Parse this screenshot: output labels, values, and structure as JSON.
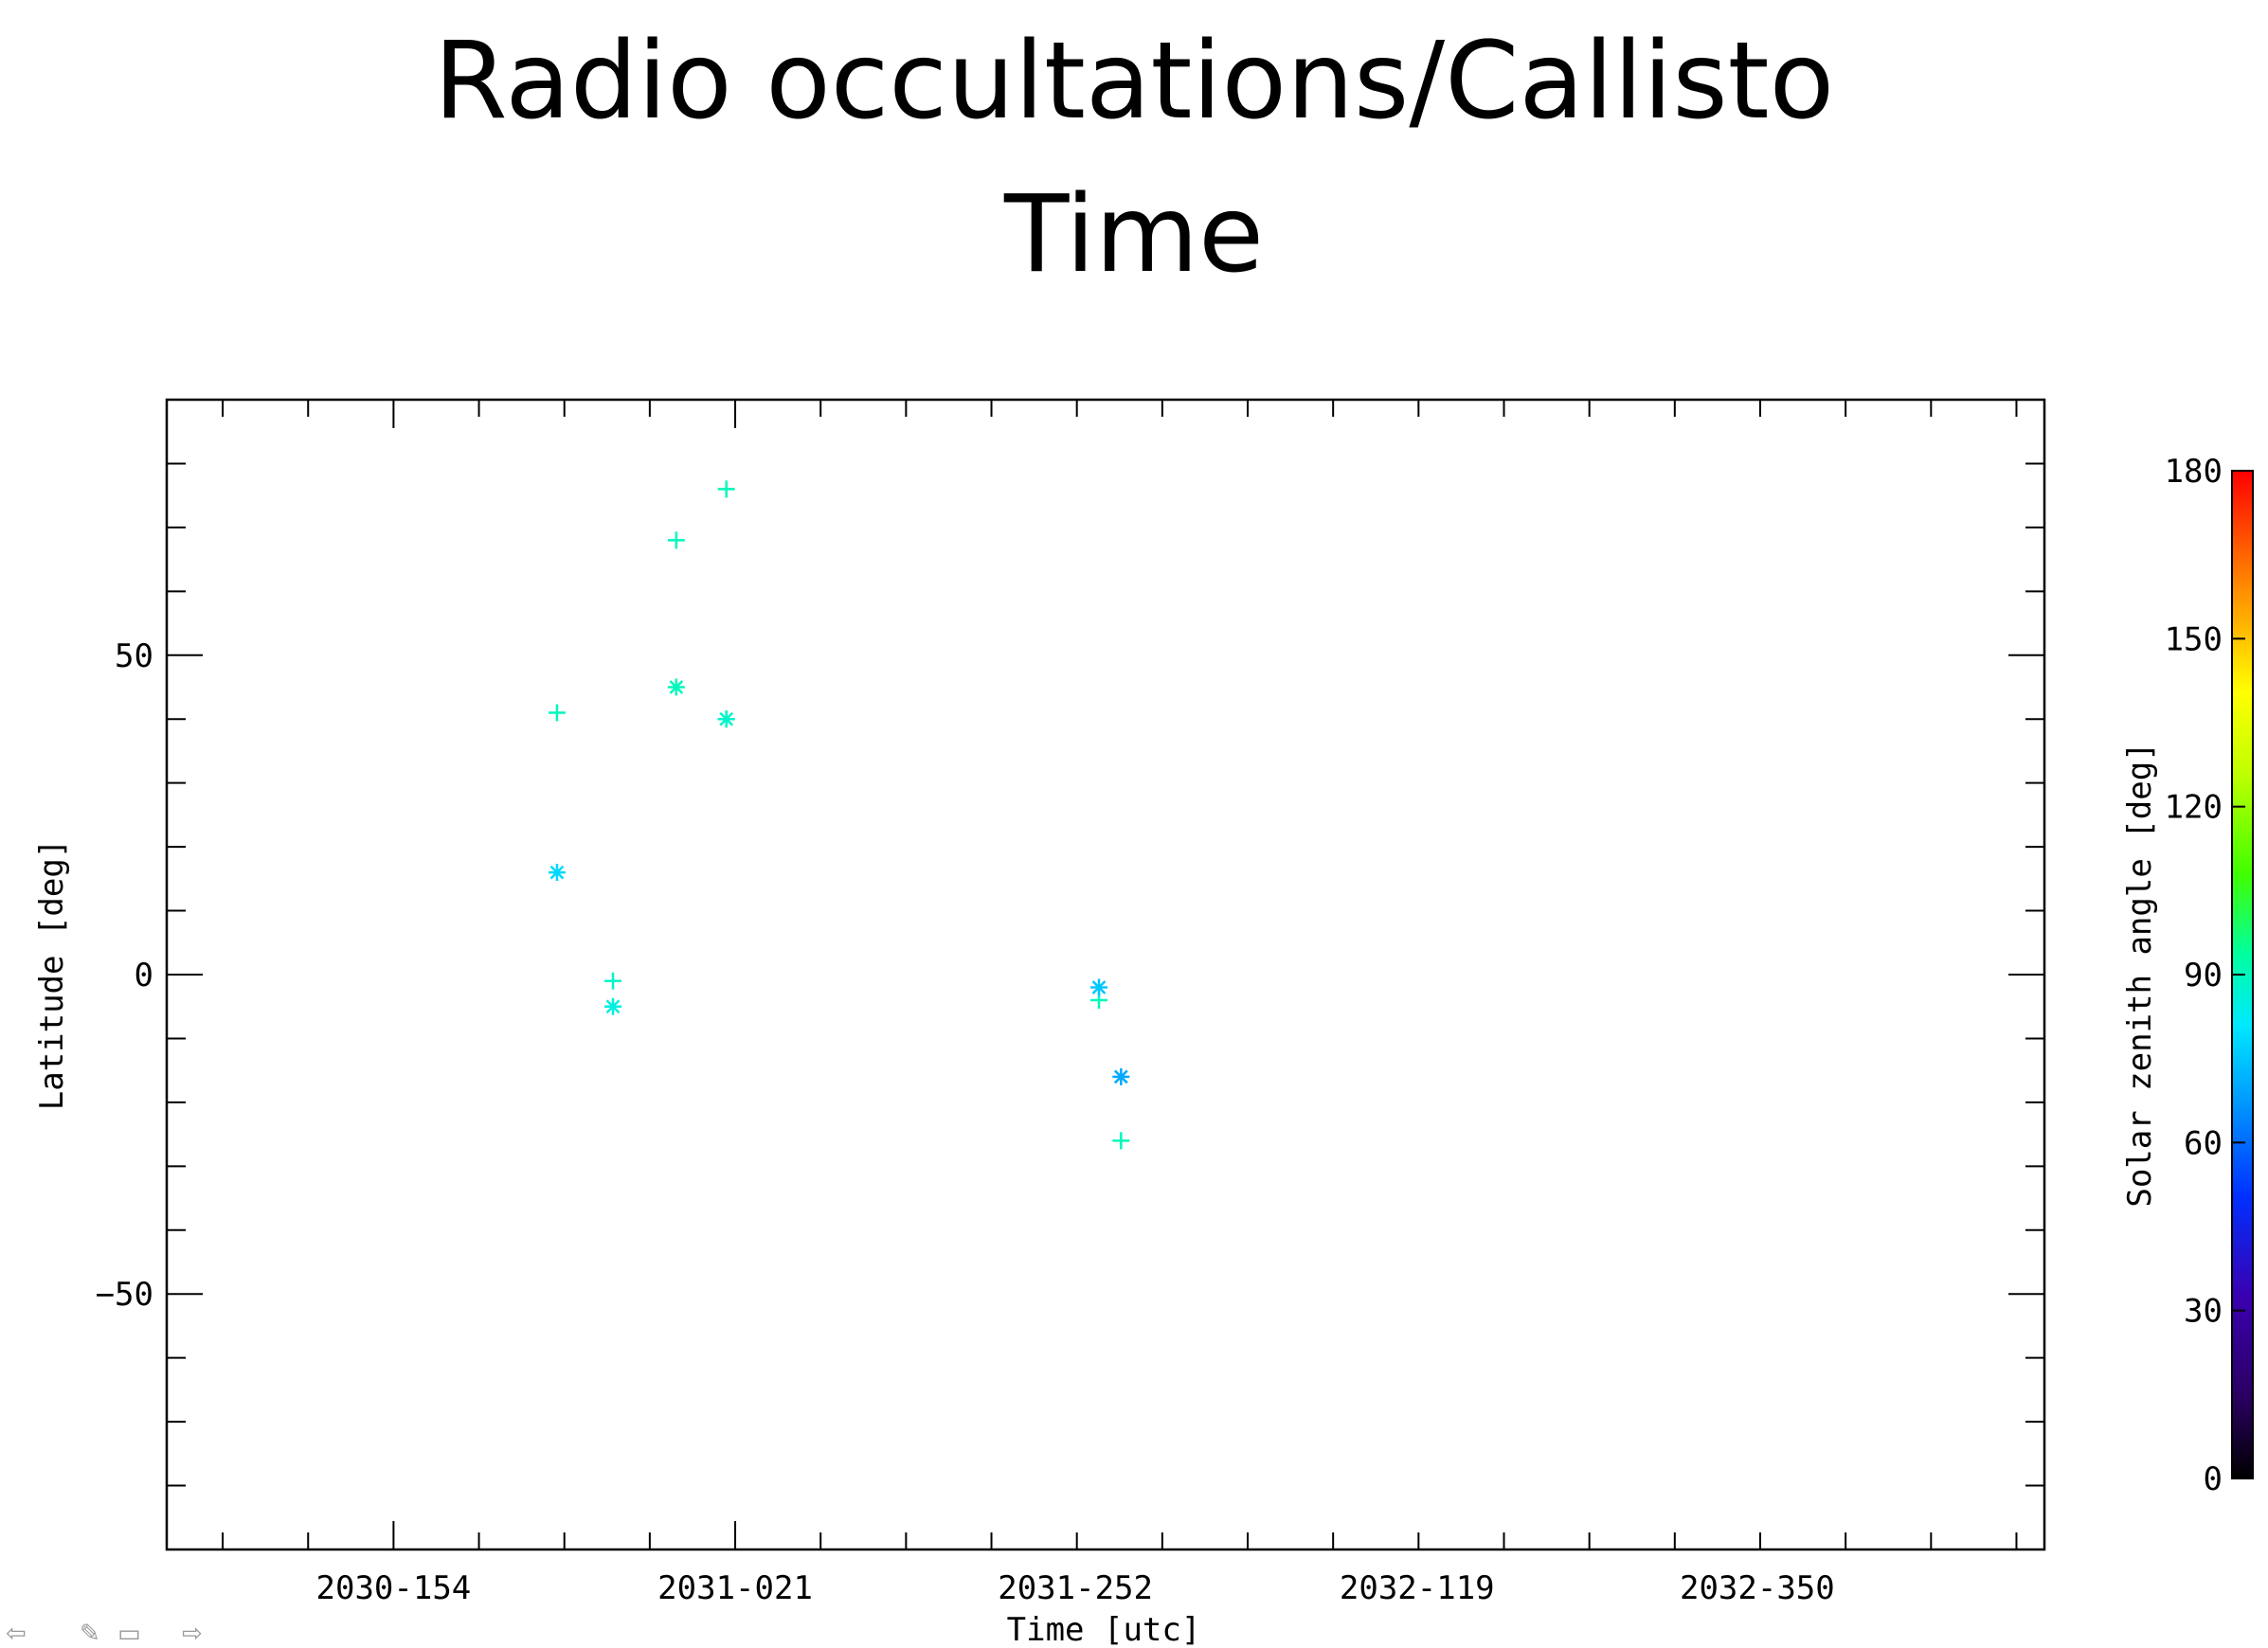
{
  "slide": {
    "title_line1": "Radio occultations/Callisto",
    "title_line2": "Time"
  },
  "chart_data": {
    "type": "scatter",
    "title": "",
    "xlabel": "Time [utc]",
    "ylabel": "Latitude [deg]",
    "x_ticks": [
      {
        "label": "2030-154",
        "doy": 154
      },
      {
        "label": "2031-021",
        "doy": 386
      },
      {
        "label": "2031-252",
        "doy": 617
      },
      {
        "label": "2032-119",
        "doy": 849
      },
      {
        "label": "2032-350",
        "doy": 1080
      }
    ],
    "xlim_doy": [
      0,
      1275
    ],
    "ylim": [
      -90,
      90
    ],
    "y_ticks": [
      -50,
      0,
      50
    ],
    "grid": false,
    "colorbar": {
      "label": "Solar zenith angle [deg]",
      "range": [
        0,
        180
      ],
      "ticks": [
        0,
        30,
        60,
        90,
        120,
        150,
        180
      ],
      "colormap": "rainbow"
    },
    "series": [
      {
        "marker": "plus",
        "points": [
          {
            "x_doy": 265,
            "y": 41,
            "sza": 90
          },
          {
            "x_doy": 303,
            "y": -1,
            "sza": 88
          },
          {
            "x_doy": 346,
            "y": 68,
            "sza": 90
          },
          {
            "x_doy": 380,
            "y": 76,
            "sza": 90
          },
          {
            "x_doy": 380,
            "y": 40,
            "sza": 92
          },
          {
            "x_doy": 633,
            "y": -4,
            "sza": 90
          },
          {
            "x_doy": 648,
            "y": -26,
            "sza": 90
          }
        ]
      },
      {
        "marker": "asterisk",
        "points": [
          {
            "x_doy": 265,
            "y": 16,
            "sza": 78
          },
          {
            "x_doy": 303,
            "y": -5,
            "sza": 85
          },
          {
            "x_doy": 346,
            "y": 45,
            "sza": 90
          },
          {
            "x_doy": 380,
            "y": 40,
            "sza": 88
          },
          {
            "x_doy": 633,
            "y": -2,
            "sza": 75
          },
          {
            "x_doy": 648,
            "y": -16,
            "sza": 70
          }
        ]
      }
    ]
  },
  "nav_icons": [
    "arrow-left-icon",
    "pencil-icon",
    "screen-icon",
    "arrow-right-icon"
  ]
}
